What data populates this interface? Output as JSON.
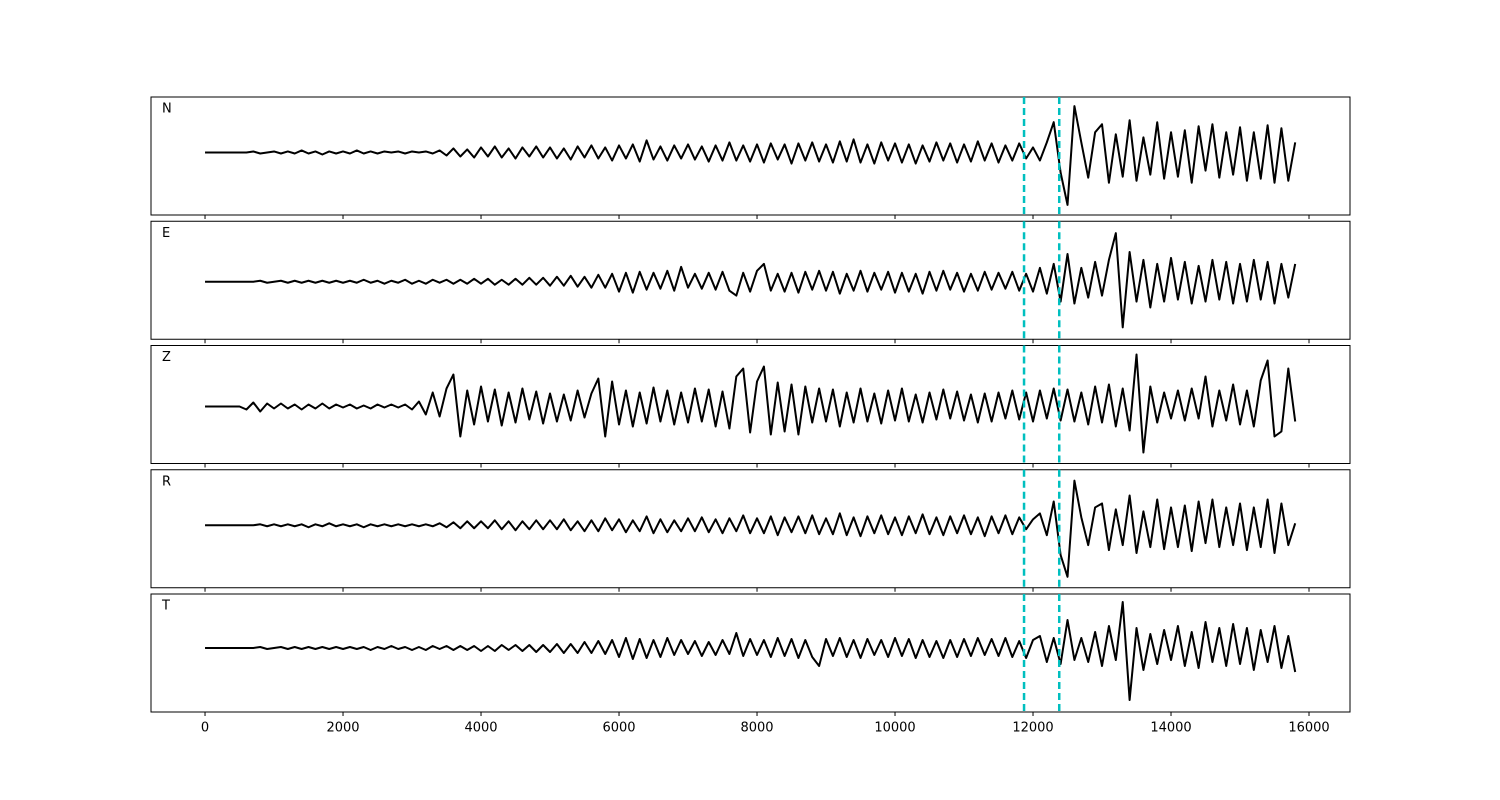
{
  "chart_data": {
    "type": "line",
    "x": [
      0,
      100,
      200,
      300,
      400,
      500,
      600,
      700,
      800,
      900,
      1000,
      1100,
      1200,
      1300,
      1400,
      1500,
      1600,
      1700,
      1800,
      1900,
      2000,
      2100,
      2200,
      2300,
      2400,
      2500,
      2600,
      2700,
      2800,
      2900,
      3000,
      3100,
      3200,
      3300,
      3400,
      3500,
      3600,
      3700,
      3800,
      3900,
      4000,
      4100,
      4200,
      4300,
      4400,
      4500,
      4600,
      4700,
      4800,
      4900,
      5000,
      5100,
      5200,
      5300,
      5400,
      5500,
      5600,
      5700,
      5800,
      5900,
      6000,
      6100,
      6200,
      6300,
      6400,
      6500,
      6600,
      6700,
      6800,
      6900,
      7000,
      7100,
      7200,
      7300,
      7400,
      7500,
      7600,
      7700,
      7800,
      7900,
      8000,
      8100,
      8200,
      8300,
      8400,
      8500,
      8600,
      8700,
      8800,
      8900,
      9000,
      9100,
      9200,
      9300,
      9400,
      9500,
      9600,
      9700,
      9800,
      9900,
      10000,
      10100,
      10200,
      10300,
      10400,
      10500,
      10600,
      10700,
      10800,
      10900,
      11000,
      11100,
      11200,
      11300,
      11400,
      11500,
      11600,
      11700,
      11800,
      11900,
      12000,
      12100,
      12200,
      12300,
      12400,
      12500,
      12600,
      12700,
      12800,
      12900,
      13000,
      13100,
      13200,
      13300,
      13400,
      13500,
      13600,
      13700,
      13800,
      13900,
      14000,
      14100,
      14200,
      14300,
      14400,
      14500,
      14600,
      14700,
      14800,
      14900,
      15000,
      15100,
      15200,
      15300,
      15400,
      15500,
      15600,
      15700,
      15800
    ],
    "xlim": [
      -783,
      16594
    ],
    "xticks": [
      0,
      2000,
      4000,
      6000,
      8000,
      10000,
      12000,
      14000,
      16000
    ],
    "vlines": [
      11870,
      12380
    ],
    "vline_color": "#00bfbf",
    "series": [
      {
        "name": "N",
        "color": "#000000",
        "ylim": [
          -62,
          55
        ],
        "values": [
          0,
          0,
          0,
          0,
          0,
          0,
          0,
          1,
          -1,
          0,
          1,
          -1,
          1,
          -1,
          2,
          -1,
          1,
          -2,
          1,
          -1,
          1,
          -1,
          2,
          -1,
          1,
          -1,
          1,
          0,
          1,
          -1,
          1,
          0,
          1,
          -1,
          2,
          -3,
          4,
          -4,
          3,
          -5,
          5,
          -4,
          6,
          -5,
          4,
          -6,
          5,
          -4,
          6,
          -5,
          5,
          -6,
          4,
          -7,
          6,
          -5,
          7,
          -6,
          5,
          -8,
          7,
          -6,
          8,
          -9,
          12,
          -7,
          6,
          -8,
          7,
          -6,
          8,
          -7,
          6,
          -9,
          7,
          -8,
          10,
          -8,
          7,
          -9,
          8,
          -10,
          9,
          -7,
          8,
          -11,
          9,
          -8,
          10,
          -9,
          8,
          -10,
          11,
          -9,
          13,
          -10,
          8,
          -11,
          10,
          -8,
          9,
          -10,
          8,
          -11,
          7,
          -9,
          10,
          -8,
          9,
          -10,
          8,
          -9,
          11,
          -8,
          9,
          -10,
          7,
          -8,
          9,
          -6,
          5,
          -8,
          10,
          30,
          -20,
          -52,
          46,
          10,
          -25,
          20,
          28,
          -30,
          18,
          -24,
          32,
          -28,
          15,
          -22,
          30,
          -26,
          20,
          -24,
          22,
          -30,
          26,
          -18,
          28,
          -25,
          20,
          -22,
          25,
          -28,
          20,
          -26,
          27,
          -30,
          24,
          -28,
          10
        ]
      },
      {
        "name": "E",
        "color": "#000000",
        "ylim": [
          -58,
          61
        ],
        "values": [
          0,
          0,
          0,
          0,
          0,
          0,
          0,
          0,
          1,
          -1,
          0,
          1,
          -1,
          1,
          -1,
          1,
          -1,
          1,
          -1,
          1,
          -1,
          1,
          -1,
          2,
          -1,
          1,
          -2,
          1,
          -1,
          2,
          -2,
          1,
          -2,
          2,
          -1,
          2,
          -2,
          2,
          -2,
          3,
          -2,
          3,
          -3,
          2,
          -3,
          3,
          -3,
          4,
          -3,
          4,
          -4,
          5,
          -4,
          6,
          -5,
          5,
          -6,
          7,
          -6,
          8,
          -10,
          9,
          -11,
          10,
          -8,
          9,
          -7,
          11,
          -9,
          15,
          -6,
          8,
          -7,
          9,
          -8,
          10,
          -9,
          -14,
          9,
          -10,
          11,
          18,
          -9,
          8,
          -10,
          9,
          -11,
          10,
          -8,
          11,
          -9,
          10,
          -12,
          8,
          -9,
          11,
          -10,
          9,
          -8,
          10,
          -11,
          9,
          -10,
          8,
          -12,
          10,
          -9,
          11,
          -8,
          9,
          -10,
          8,
          -9,
          10,
          -8,
          9,
          -7,
          10,
          -9,
          8,
          -10,
          14,
          -12,
          18,
          -20,
          28,
          -22,
          14,
          -16,
          20,
          -14,
          22,
          49,
          -46,
          30,
          -20,
          22,
          -26,
          18,
          -20,
          24,
          -18,
          20,
          -22,
          16,
          -20,
          22,
          -18,
          20,
          -22,
          18,
          -20,
          22,
          -18,
          20,
          -22,
          18,
          -16,
          18
        ]
      },
      {
        "name": "Z",
        "color": "#000000",
        "ylim": [
          -57,
          61
        ],
        "values": [
          0,
          0,
          0,
          0,
          0,
          0,
          -3,
          4,
          -5,
          3,
          -2,
          3,
          -2,
          2,
          -3,
          2,
          -2,
          3,
          -2,
          2,
          -1,
          2,
          -2,
          1,
          -2,
          2,
          -1,
          2,
          -1,
          2,
          -3,
          5,
          -8,
          14,
          -10,
          18,
          32,
          -30,
          16,
          -18,
          20,
          -15,
          17,
          -19,
          14,
          -16,
          18,
          -13,
          15,
          -17,
          13,
          -15,
          12,
          -14,
          16,
          -11,
          13,
          28,
          -30,
          25,
          -18,
          16,
          -20,
          14,
          -17,
          19,
          -15,
          16,
          -18,
          14,
          -16,
          18,
          -15,
          17,
          -20,
          15,
          -22,
          30,
          38,
          -26,
          25,
          40,
          -28,
          24,
          -25,
          22,
          -28,
          20,
          -16,
          18,
          -15,
          17,
          -20,
          14,
          -16,
          18,
          -15,
          13,
          -17,
          16,
          -14,
          18,
          -15,
          12,
          -16,
          14,
          -13,
          17,
          -12,
          15,
          -14,
          12,
          -16,
          13,
          -15,
          14,
          -12,
          16,
          -13,
          14,
          -15,
          16,
          -12,
          18,
          -14,
          17,
          -15,
          14,
          -18,
          20,
          -16,
          22,
          -20,
          18,
          -24,
          52,
          -46,
          20,
          -16,
          14,
          -12,
          16,
          -14,
          18,
          -12,
          30,
          -20,
          16,
          -14,
          22,
          -18,
          16,
          -20,
          26,
          46,
          -30,
          -25,
          38,
          -15
        ]
      },
      {
        "name": "R",
        "color": "#000000",
        "ylim": [
          -63,
          56
        ],
        "values": [
          0,
          0,
          0,
          0,
          0,
          0,
          0,
          0,
          1,
          -1,
          1,
          -1,
          1,
          -1,
          1,
          -2,
          1,
          -1,
          2,
          -1,
          1,
          -1,
          1,
          -2,
          1,
          -1,
          1,
          -1,
          1,
          -1,
          1,
          -1,
          1,
          -1,
          2,
          -2,
          3,
          -3,
          4,
          -3,
          4,
          -3,
          5,
          -4,
          4,
          -5,
          4,
          -4,
          5,
          -4,
          5,
          -4,
          6,
          -5,
          4,
          -6,
          5,
          -6,
          7,
          -5,
          6,
          -7,
          5,
          -6,
          9,
          -8,
          6,
          -7,
          5,
          -6,
          7,
          -6,
          8,
          -7,
          6,
          -8,
          7,
          -6,
          10,
          -8,
          7,
          -8,
          9,
          -10,
          8,
          -7,
          9,
          -8,
          10,
          -9,
          7,
          -9,
          12,
          -10,
          8,
          -11,
          9,
          -8,
          10,
          -9,
          8,
          -10,
          9,
          -8,
          11,
          -9,
          8,
          -10,
          9,
          -8,
          10,
          -9,
          8,
          -11,
          9,
          -8,
          10,
          -9,
          8,
          -4,
          6,
          12,
          -10,
          24,
          -30,
          -52,
          45,
          8,
          -20,
          18,
          22,
          -25,
          16,
          -20,
          30,
          -28,
          14,
          -22,
          26,
          -24,
          18,
          -22,
          20,
          -26,
          24,
          -18,
          26,
          -22,
          18,
          -20,
          22,
          -25,
          18,
          -22,
          26,
          -28,
          22,
          -20,
          2
        ]
      },
      {
        "name": "T",
        "color": "#000000",
        "ylim": [
          -64,
          54
        ],
        "values": [
          0,
          0,
          0,
          0,
          0,
          0,
          0,
          0,
          1,
          -1,
          0,
          1,
          -1,
          1,
          -1,
          1,
          -1,
          1,
          -1,
          1,
          -1,
          1,
          -1,
          1,
          -2,
          1,
          -1,
          2,
          -1,
          1,
          -2,
          1,
          -2,
          2,
          -1,
          2,
          -2,
          2,
          -2,
          2,
          -3,
          2,
          -3,
          3,
          -2,
          3,
          -3,
          3,
          -4,
          3,
          -4,
          4,
          -5,
          4,
          -5,
          6,
          -5,
          7,
          -6,
          8,
          -9,
          10,
          -11,
          9,
          -10,
          8,
          -9,
          10,
          -7,
          8,
          -6,
          7,
          -8,
          6,
          -7,
          8,
          -6,
          15,
          -8,
          9,
          -7,
          8,
          -9,
          10,
          -8,
          9,
          -10,
          8,
          -9,
          -18,
          9,
          -8,
          10,
          -9,
          8,
          -10,
          9,
          -7,
          8,
          -9,
          10,
          -8,
          9,
          -10,
          8,
          -9,
          7,
          -10,
          8,
          -9,
          9,
          -8,
          10,
          -7,
          9,
          -8,
          10,
          -9,
          7,
          -10,
          8,
          12,
          -14,
          10,
          -16,
          28,
          -12,
          10,
          -14,
          16,
          -18,
          22,
          -12,
          46,
          -52,
          20,
          -22,
          14,
          -16,
          18,
          -12,
          22,
          -18,
          16,
          -20,
          26,
          -14,
          20,
          -18,
          24,
          -16,
          20,
          -22,
          18,
          -14,
          22,
          -20,
          12,
          -24
        ]
      }
    ]
  }
}
